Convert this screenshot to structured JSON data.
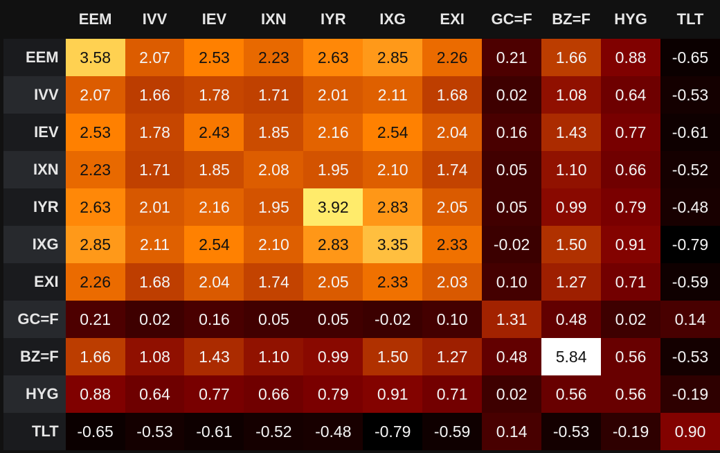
{
  "chart_data": {
    "type": "heatmap",
    "columns": [
      "EEM",
      "IVV",
      "IEV",
      "IXN",
      "IYR",
      "IXG",
      "EXI",
      "GC=F",
      "BZ=F",
      "HYG",
      "TLT"
    ],
    "rows": [
      "EEM",
      "IVV",
      "IEV",
      "IXN",
      "IYR",
      "IXG",
      "EXI",
      "GC=F",
      "BZ=F",
      "HYG",
      "TLT"
    ],
    "cells": [
      [
        "3.58",
        "2.07",
        "2.53",
        "2.23",
        "2.63",
        "2.85",
        "2.26",
        "0.21",
        "1.66",
        "0.88",
        "-0.65"
      ],
      [
        "2.07",
        "1.66",
        "1.78",
        "1.71",
        "2.01",
        "2.11",
        "1.68",
        "0.02",
        "1.08",
        "0.64",
        "-0.53"
      ],
      [
        "2.53",
        "1.78",
        "2.43",
        "1.85",
        "2.16",
        "2.54",
        "2.04",
        "0.16",
        "1.43",
        "0.77",
        "-0.61"
      ],
      [
        "2.23",
        "1.71",
        "1.85",
        "2.08",
        "1.95",
        "2.10",
        "1.74",
        "0.05",
        "1.10",
        "0.66",
        "-0.52"
      ],
      [
        "2.63",
        "2.01",
        "2.16",
        "1.95",
        "3.92",
        "2.83",
        "2.05",
        "0.05",
        "0.99",
        "0.79",
        "-0.48"
      ],
      [
        "2.85",
        "2.11",
        "2.54",
        "2.10",
        "2.83",
        "3.35",
        "2.33",
        "-0.02",
        "1.50",
        "0.91",
        "-0.79"
      ],
      [
        "2.26",
        "1.68",
        "2.04",
        "1.74",
        "2.05",
        "2.33",
        "2.03",
        "0.10",
        "1.27",
        "0.71",
        "-0.59"
      ],
      [
        "0.21",
        "0.02",
        "0.16",
        "0.05",
        "0.05",
        "-0.02",
        "0.10",
        "1.31",
        "0.48",
        "0.02",
        "0.14"
      ],
      [
        "1.66",
        "1.08",
        "1.43",
        "1.10",
        "0.99",
        "1.50",
        "1.27",
        "0.48",
        "5.84",
        "0.56",
        "-0.53"
      ],
      [
        "0.88",
        "0.64",
        "0.77",
        "0.66",
        "0.79",
        "0.91",
        "0.71",
        "0.02",
        "0.56",
        "0.56",
        "-0.19"
      ],
      [
        "-0.65",
        "-0.53",
        "-0.61",
        "-0.52",
        "-0.48",
        "-0.79",
        "-0.59",
        "0.14",
        "-0.53",
        "-0.19",
        "0.90"
      ]
    ],
    "colormap": "afmhot",
    "vmin": -0.79,
    "vmax": 5.84,
    "colorbar": false
  }
}
